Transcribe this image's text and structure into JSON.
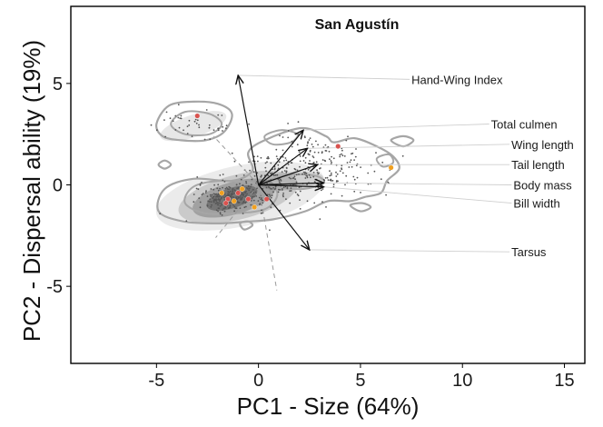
{
  "chart_data": {
    "type": "scatter",
    "subtype": "PCA biplot with density contours and loading arrows",
    "title": "San Agustín",
    "xlabel": "PC1 - Size (64%)",
    "ylabel": "PC2 - Dispersal ability (19%)",
    "xlim": [
      -9.2,
      16
    ],
    "ylim": [
      -8.8,
      8.8
    ],
    "xticks": [
      -5,
      0,
      5,
      10,
      15
    ],
    "yticks": [
      -5,
      0,
      5
    ],
    "xtick_labels": [
      "-5",
      "0",
      "5",
      "10",
      "15"
    ],
    "ytick_labels": [
      "-5",
      "0",
      "5"
    ],
    "grid": false,
    "colors": {
      "points": "#555555",
      "contour": "#a6a6a6",
      "density_fill": "#3a3a3a",
      "highlight_red": "#d9534f",
      "highlight_orange": "#f0a020",
      "arrow": "#111111",
      "leader": "#cfcfcf",
      "dashed_axis": "#9a9a9a"
    },
    "loadings": [
      {
        "name": "Hand-Wing Index",
        "x": -1.0,
        "y": 5.4,
        "label_x": 7.5,
        "label_y": 5.2
      },
      {
        "name": "Total culmen",
        "x": 2.2,
        "y": 2.7,
        "label_x": 11.4,
        "label_y": 3.0
      },
      {
        "name": "Wing length",
        "x": 2.4,
        "y": 1.8,
        "label_x": 12.4,
        "label_y": 2.0
      },
      {
        "name": "Tail length",
        "x": 2.9,
        "y": 1.0,
        "label_x": 12.4,
        "label_y": 1.0
      },
      {
        "name": "Body mass",
        "x": 3.2,
        "y": 0.1,
        "label_x": 12.5,
        "label_y": 0.0
      },
      {
        "name": "Bill width",
        "x": 3.2,
        "y": -0.1,
        "label_x": 12.5,
        "label_y": -0.9
      },
      {
        "name": "Tarsus",
        "x": 2.5,
        "y": -3.2,
        "label_x": 12.4,
        "label_y": -3.3
      }
    ],
    "highlight_points": [
      {
        "x": -3.0,
        "y": 3.4,
        "group": "red"
      },
      {
        "x": 3.9,
        "y": 1.9,
        "group": "red"
      },
      {
        "x": 6.5,
        "y": 0.85,
        "group": "orange"
      },
      {
        "x": -1.8,
        "y": -0.4,
        "group": "orange"
      },
      {
        "x": -1.5,
        "y": -0.7,
        "group": "red"
      },
      {
        "x": -1.2,
        "y": -0.8,
        "group": "orange"
      },
      {
        "x": -1.0,
        "y": -0.4,
        "group": "red"
      },
      {
        "x": -0.8,
        "y": -0.2,
        "group": "orange"
      },
      {
        "x": -0.5,
        "y": -0.7,
        "group": "red"
      },
      {
        "x": -0.2,
        "y": -1.1,
        "group": "orange"
      },
      {
        "x": 0.4,
        "y": -0.7,
        "group": "red"
      },
      {
        "x": -1.6,
        "y": -0.9,
        "group": "red"
      }
    ],
    "point_clusters": [
      {
        "cx": -1.3,
        "cy": -0.6,
        "sx": 1.1,
        "sy": 0.45,
        "n": 300
      },
      {
        "cx": 0.8,
        "cy": 0.2,
        "sx": 1.5,
        "sy": 0.8,
        "n": 110
      },
      {
        "cx": 3.0,
        "cy": 0.7,
        "sx": 2.0,
        "sy": 1.0,
        "n": 190
      },
      {
        "cx": -3.0,
        "cy": 3.0,
        "sx": 1.3,
        "sy": 0.45,
        "n": 45
      },
      {
        "cx": 2.2,
        "cy": 2.2,
        "sx": 1.1,
        "sy": 0.5,
        "n": 30
      }
    ],
    "density_layers": [
      {
        "cx": -0.9,
        "cy": -0.55,
        "rx": 4.2,
        "ry": 1.5,
        "rot": 12,
        "fill_opacity": 0.1
      },
      {
        "cx": -1.0,
        "cy": -0.6,
        "rx": 3.0,
        "ry": 1.1,
        "rot": 14,
        "fill_opacity": 0.18
      },
      {
        "cx": -1.2,
        "cy": -0.65,
        "rx": 2.1,
        "ry": 0.8,
        "rot": 16,
        "fill_opacity": 0.28
      },
      {
        "cx": -1.3,
        "cy": -0.65,
        "rx": 1.3,
        "ry": 0.5,
        "rot": 18,
        "fill_opacity": 0.42
      },
      {
        "cx": 1.6,
        "cy": 0.2,
        "rx": 1.6,
        "ry": 0.45,
        "rot": 5,
        "fill_opacity": 0.15
      },
      {
        "cx": -3.2,
        "cy": 2.9,
        "rx": 1.7,
        "ry": 0.55,
        "rot": 18,
        "fill_opacity": 0.12
      }
    ],
    "outer_contours": [
      [
        [
          -4.9,
          -1.3
        ],
        [
          -4.6,
          -0.2
        ],
        [
          -3.2,
          0.3
        ],
        [
          -1.3,
          0.2
        ],
        [
          -0.3,
          0.7
        ],
        [
          -0.5,
          1.6
        ],
        [
          0.3,
          2.2
        ],
        [
          2.1,
          2.8
        ],
        [
          3.3,
          2.4
        ],
        [
          3.7,
          2.1
        ],
        [
          4.7,
          2.3
        ],
        [
          5.8,
          1.9
        ],
        [
          6.6,
          1.4
        ],
        [
          6.9,
          0.8
        ],
        [
          6.3,
          0.2
        ],
        [
          6.0,
          -0.4
        ],
        [
          5.2,
          -0.6
        ],
        [
          4.5,
          -0.8
        ],
        [
          3.4,
          -0.8
        ],
        [
          2.3,
          -1.3
        ],
        [
          0.7,
          -1.7
        ],
        [
          -0.4,
          -1.8
        ],
        [
          -2.0,
          -1.9
        ],
        [
          -3.7,
          -1.8
        ],
        [
          -4.9,
          -1.3
        ]
      ],
      [
        [
          -5.0,
          3.0
        ],
        [
          -4.4,
          3.9
        ],
        [
          -3.2,
          4.1
        ],
        [
          -2.0,
          4.0
        ],
        [
          -1.3,
          3.5
        ],
        [
          -1.7,
          2.6
        ],
        [
          -2.6,
          2.2
        ],
        [
          -3.8,
          2.2
        ],
        [
          -4.7,
          2.4
        ],
        [
          -5.0,
          3.0
        ]
      ],
      [
        [
          -4.9,
          1.0
        ],
        [
          -4.6,
          1.2
        ],
        [
          -4.3,
          1.0
        ],
        [
          -4.6,
          0.8
        ],
        [
          -4.9,
          1.0
        ]
      ],
      [
        [
          6.5,
          2.2
        ],
        [
          7.1,
          2.4
        ],
        [
          7.6,
          2.2
        ],
        [
          7.1,
          1.9
        ],
        [
          6.5,
          2.2
        ]
      ],
      [
        [
          4.5,
          -1.0
        ],
        [
          5.1,
          -0.9
        ],
        [
          5.5,
          -1.1
        ],
        [
          5.0,
          -1.3
        ],
        [
          4.5,
          -1.0
        ]
      ],
      [
        [
          -0.9,
          -1.9
        ],
        [
          -0.5,
          -1.8
        ],
        [
          -0.3,
          -2.0
        ],
        [
          -0.7,
          -2.2
        ],
        [
          -0.9,
          -1.9
        ]
      ]
    ],
    "inner_contours": [
      [
        [
          -3.6,
          -0.9
        ],
        [
          -3.2,
          -0.1
        ],
        [
          -1.9,
          0.2
        ],
        [
          -0.4,
          0.1
        ],
        [
          0.7,
          -0.1
        ],
        [
          0.9,
          -0.6
        ],
        [
          0.3,
          -1.2
        ],
        [
          -1.1,
          -1.4
        ],
        [
          -2.6,
          -1.4
        ],
        [
          -3.6,
          -0.9
        ]
      ],
      [
        [
          -4.3,
          3.0
        ],
        [
          -3.6,
          3.6
        ],
        [
          -2.4,
          3.5
        ],
        [
          -1.8,
          3.0
        ],
        [
          -2.4,
          2.5
        ],
        [
          -3.6,
          2.5
        ],
        [
          -4.3,
          3.0
        ]
      ],
      [
        [
          0.5,
          0.2
        ],
        [
          1.6,
          0.5
        ],
        [
          2.8,
          0.45
        ],
        [
          3.2,
          0.1
        ],
        [
          2.2,
          -0.2
        ],
        [
          0.8,
          -0.1
        ],
        [
          0.5,
          0.2
        ]
      ],
      [
        [
          0.3,
          2.4
        ],
        [
          1.1,
          2.7
        ],
        [
          1.9,
          2.5
        ],
        [
          1.6,
          2.1
        ],
        [
          0.7,
          2.0
        ],
        [
          0.3,
          2.4
        ]
      ],
      [
        [
          5.8,
          1.3
        ],
        [
          6.4,
          1.5
        ],
        [
          6.6,
          1.1
        ],
        [
          6.1,
          0.9
        ],
        [
          5.8,
          1.3
        ]
      ]
    ],
    "dashed_lines": [
      [
        [
          0.0,
          0.0
        ],
        [
          -2.2,
          2.4
        ]
      ],
      [
        [
          0.0,
          0.0
        ],
        [
          -2.1,
          -2.6
        ]
      ],
      [
        [
          0.0,
          0.0
        ],
        [
          0.9,
          -5.2
        ]
      ]
    ]
  }
}
